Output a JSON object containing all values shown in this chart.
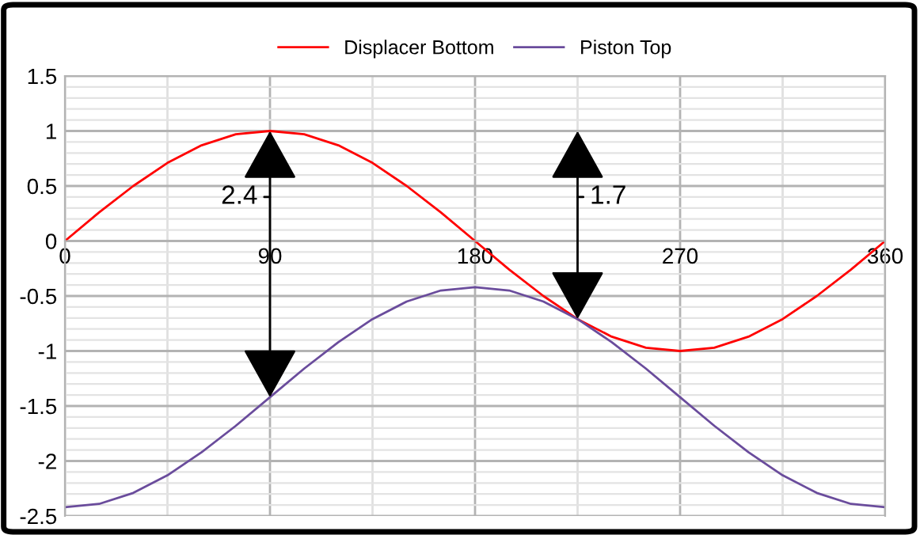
{
  "chart_data": {
    "type": "line",
    "x": [
      0,
      15,
      30,
      45,
      60,
      75,
      90,
      105,
      120,
      135,
      150,
      165,
      180,
      195,
      210,
      225,
      240,
      255,
      270,
      285,
      300,
      315,
      330,
      345,
      360
    ],
    "series": [
      {
        "name": "Displacer Bottom",
        "color": "#ff0000",
        "values": [
          0,
          0.26,
          0.5,
          0.71,
          0.87,
          0.97,
          1,
          0.97,
          0.87,
          0.71,
          0.5,
          0.26,
          0,
          -0.26,
          -0.5,
          -0.71,
          -0.87,
          -0.97,
          -1,
          -0.97,
          -0.87,
          -0.71,
          -0.5,
          -0.26,
          0
        ]
      },
      {
        "name": "Piston Top",
        "color": "#6a4c9c",
        "values": [
          -2.42,
          -2.39,
          -2.29,
          -2.13,
          -1.92,
          -1.68,
          -1.42,
          -1.16,
          -0.92,
          -0.71,
          -0.55,
          -0.45,
          -0.42,
          -0.45,
          -0.55,
          -0.71,
          -0.92,
          -1.16,
          -1.42,
          -1.68,
          -1.92,
          -2.13,
          -2.29,
          -2.39,
          -2.42
        ]
      }
    ],
    "xlim": [
      0,
      360
    ],
    "xticks": [
      0,
      90,
      180,
      270,
      360
    ],
    "ylim": [
      -2.5,
      1.5
    ],
    "yticks": [
      -2.5,
      -2,
      -1.5,
      -1,
      -0.5,
      0,
      0.5,
      1,
      1.5
    ],
    "grid": true,
    "legend": "top",
    "marker": "none",
    "line_style": "solid",
    "annotations": [
      {
        "text": "2.4",
        "x": 90,
        "y": -1.42
      },
      {
        "text": "1.7",
        "x": 225,
        "y": -0.71
      }
    ]
  }
}
